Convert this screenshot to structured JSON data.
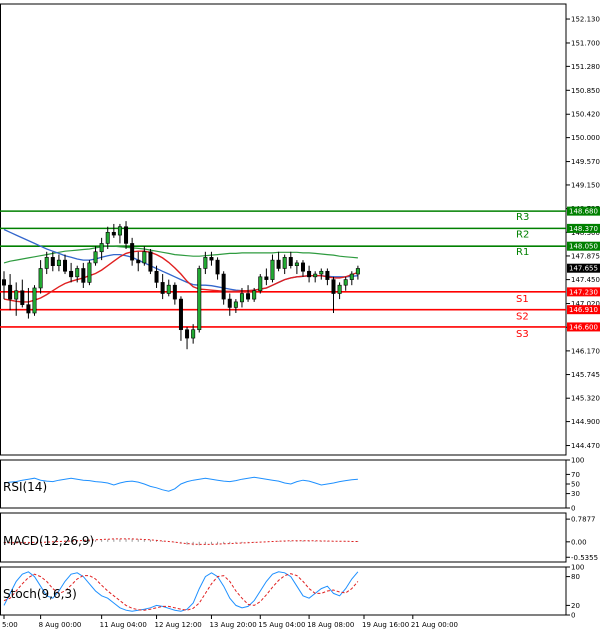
{
  "chart_data": {
    "type": "candlestick",
    "main": {
      "ylim": [
        144.3,
        152.4
      ],
      "y_ticks": [
        "152.130",
        "151.700",
        "151.280",
        "150.850",
        "150.420",
        "150.000",
        "149.570",
        "149.150",
        "148.725",
        "148.300",
        "147.875",
        "147.450",
        "147.020",
        "146.595",
        "146.170",
        "145.745",
        "145.320",
        "144.900",
        "144.470"
      ],
      "y_tick_values": [
        152.13,
        151.7,
        151.28,
        150.85,
        150.42,
        150.0,
        149.57,
        149.15,
        148.725,
        148.3,
        147.875,
        147.45,
        147.02,
        146.595,
        146.17,
        145.745,
        145.32,
        144.9,
        144.47
      ],
      "levels": [
        {
          "name": "R3",
          "value": 148.68,
          "label": "148.680",
          "color": "#008000"
        },
        {
          "name": "R2",
          "value": 148.37,
          "label": "148.370",
          "color": "#008000"
        },
        {
          "name": "R1",
          "value": 148.05,
          "label": "148.050",
          "color": "#008000"
        },
        {
          "name": "S1",
          "value": 147.23,
          "label": "147.230",
          "color": "#ff0000"
        },
        {
          "name": "S2",
          "value": 146.91,
          "label": "146.910",
          "color": "#ff0000"
        },
        {
          "name": "S3",
          "value": 146.6,
          "label": "146.600",
          "color": "#ff0000"
        }
      ],
      "current_price": {
        "value": 147.655,
        "label": "147.655"
      },
      "candles": [
        [
          147.45,
          147.6,
          147.1,
          147.35
        ],
        [
          147.35,
          147.55,
          146.9,
          147.1
        ],
        [
          147.1,
          147.4,
          146.8,
          147.25
        ],
        [
          147.25,
          147.45,
          146.95,
          147.0
        ],
        [
          147.0,
          147.3,
          146.75,
          146.85
        ],
        [
          146.85,
          147.35,
          146.8,
          147.3
        ],
        [
          147.3,
          147.8,
          147.2,
          147.65
        ],
        [
          147.65,
          147.95,
          147.55,
          147.85
        ],
        [
          147.85,
          147.95,
          147.6,
          147.7
        ],
        [
          147.7,
          147.9,
          147.6,
          147.8
        ],
        [
          147.8,
          147.9,
          147.55,
          147.6
        ],
        [
          147.6,
          147.75,
          147.4,
          147.5
        ],
        [
          147.5,
          147.7,
          147.4,
          147.65
        ],
        [
          147.65,
          147.75,
          147.3,
          147.4
        ],
        [
          147.4,
          147.8,
          147.35,
          147.75
        ],
        [
          147.75,
          148.05,
          147.7,
          147.95
        ],
        [
          147.95,
          148.2,
          147.8,
          148.1
        ],
        [
          148.1,
          148.4,
          148.0,
          148.3
        ],
        [
          148.3,
          148.45,
          148.2,
          148.25
        ],
        [
          148.25,
          148.45,
          148.1,
          148.4
        ],
        [
          148.4,
          148.5,
          148.0,
          148.1
        ],
        [
          148.1,
          148.2,
          147.7,
          147.8
        ],
        [
          147.8,
          147.95,
          147.6,
          147.75
        ],
        [
          147.75,
          148.05,
          147.7,
          147.95
        ],
        [
          147.95,
          148.0,
          147.55,
          147.6
        ],
        [
          147.6,
          147.7,
          147.3,
          147.4
        ],
        [
          147.4,
          147.55,
          147.1,
          147.2
        ],
        [
          147.2,
          147.45,
          147.15,
          147.35
        ],
        [
          147.35,
          147.4,
          147.0,
          147.1
        ],
        [
          147.1,
          147.15,
          146.35,
          146.55
        ],
        [
          146.55,
          146.6,
          146.2,
          146.4
        ],
        [
          146.4,
          146.65,
          146.3,
          146.55
        ],
        [
          146.55,
          147.7,
          146.5,
          147.65
        ],
        [
          147.65,
          147.95,
          147.55,
          147.85
        ],
        [
          147.85,
          147.95,
          147.7,
          147.8
        ],
        [
          147.8,
          147.85,
          147.45,
          147.55
        ],
        [
          147.55,
          147.6,
          147.0,
          147.1
        ],
        [
          147.1,
          147.2,
          146.8,
          146.95
        ],
        [
          146.95,
          147.1,
          146.85,
          147.05
        ],
        [
          147.05,
          147.3,
          146.95,
          147.2
        ],
        [
          147.2,
          147.35,
          147.05,
          147.1
        ],
        [
          147.1,
          147.3,
          147.05,
          147.25
        ],
        [
          147.25,
          147.55,
          147.2,
          147.5
        ],
        [
          147.5,
          147.65,
          147.35,
          147.45
        ],
        [
          147.45,
          147.9,
          147.4,
          147.8
        ],
        [
          147.8,
          147.95,
          147.6,
          147.65
        ],
        [
          147.65,
          147.9,
          147.55,
          147.85
        ],
        [
          147.85,
          147.95,
          147.65,
          147.7
        ],
        [
          147.7,
          147.8,
          147.55,
          147.75
        ],
        [
          147.75,
          147.8,
          147.5,
          147.6
        ],
        [
          147.6,
          147.7,
          147.4,
          147.5
        ],
        [
          147.5,
          147.6,
          147.4,
          147.55
        ],
        [
          147.55,
          147.65,
          147.45,
          147.6
        ],
        [
          147.6,
          147.65,
          147.35,
          147.45
        ],
        [
          147.45,
          147.5,
          146.85,
          147.2
        ],
        [
          147.2,
          147.4,
          147.1,
          147.35
        ],
        [
          147.35,
          147.5,
          147.25,
          147.45
        ],
        [
          147.45,
          147.6,
          147.35,
          147.55
        ],
        [
          147.55,
          147.7,
          147.45,
          147.65
        ]
      ],
      "ma_green": [
        147.75,
        147.78,
        147.8,
        147.82,
        147.84,
        147.86,
        147.88,
        147.9,
        147.92,
        147.94,
        147.96,
        147.97,
        147.98,
        147.99,
        148.0,
        148.02,
        148.04,
        148.05,
        148.05,
        148.04,
        148.03,
        148.02,
        148.01,
        148.0,
        147.98,
        147.96,
        147.94,
        147.92,
        147.9,
        147.89,
        147.88,
        147.87,
        147.87,
        147.88,
        147.89,
        147.9,
        147.91,
        147.92,
        147.92,
        147.93,
        147.93,
        147.93,
        147.93,
        147.93,
        147.93,
        147.94,
        147.94,
        147.94,
        147.94,
        147.93,
        147.93,
        147.92,
        147.91,
        147.9,
        147.89,
        147.87,
        147.86,
        147.85,
        147.84
      ],
      "ma_blue": [
        148.35,
        148.3,
        148.25,
        148.2,
        148.15,
        148.1,
        148.05,
        148.0,
        147.96,
        147.92,
        147.88,
        147.85,
        147.82,
        147.8,
        147.8,
        147.82,
        147.85,
        147.88,
        147.9,
        147.9,
        147.88,
        147.85,
        147.8,
        147.75,
        147.7,
        147.65,
        147.6,
        147.55,
        147.5,
        147.45,
        147.4,
        147.36,
        147.35,
        147.35,
        147.34,
        147.32,
        147.3,
        147.28,
        147.26,
        147.25,
        147.25,
        147.26,
        147.28,
        147.3,
        147.35,
        147.4,
        147.45,
        147.48,
        147.5,
        147.51,
        147.52,
        147.52,
        147.52,
        147.51,
        147.5,
        147.5,
        147.5,
        147.51,
        147.52
      ],
      "ma_red": [
        147.1,
        147.08,
        147.06,
        147.05,
        147.05,
        147.08,
        147.12,
        147.18,
        147.25,
        147.32,
        147.38,
        147.42,
        147.45,
        147.48,
        147.52,
        147.56,
        147.62,
        147.7,
        147.78,
        147.86,
        147.92,
        147.95,
        147.96,
        147.96,
        147.94,
        147.9,
        147.84,
        147.76,
        147.66,
        147.55,
        147.42,
        147.32,
        147.28,
        147.27,
        147.26,
        147.25,
        147.24,
        147.24,
        147.24,
        147.25,
        147.25,
        147.26,
        147.28,
        147.3,
        147.35,
        147.4,
        147.45,
        147.48,
        147.5,
        147.51,
        147.52,
        147.52,
        147.52,
        147.5,
        147.48,
        147.48,
        147.5,
        147.54,
        147.58
      ]
    },
    "rsi": {
      "label": "RSI(14)",
      "ylim": [
        0,
        100
      ],
      "y_ticks": [
        "100",
        "70",
        "50",
        "30",
        "0"
      ],
      "y_tick_values": [
        100,
        70,
        50,
        30,
        0
      ],
      "values": [
        52,
        54,
        55,
        58,
        60,
        62,
        58,
        56,
        55,
        58,
        60,
        62,
        60,
        58,
        57,
        55,
        54,
        52,
        48,
        52,
        55,
        56,
        54,
        50,
        45,
        42,
        38,
        35,
        40,
        50,
        55,
        58,
        60,
        62,
        60,
        58,
        56,
        55,
        57,
        60,
        62,
        64,
        62,
        60,
        58,
        56,
        52,
        50,
        55,
        58,
        56,
        52,
        48,
        50,
        52,
        55,
        57,
        59,
        60
      ]
    },
    "macd": {
      "label": "MACD(12,26,9)",
      "y_ticks": [
        "0.7877",
        "0.00",
        "-0.5355"
      ],
      "y_tick_values": [
        0.7877,
        0.0,
        -0.5355
      ],
      "ylim": [
        -0.7,
        1.0
      ],
      "hist": [
        -0.05,
        -0.05,
        -0.06,
        -0.05,
        -0.04,
        -0.03,
        -0.02,
        -0.01,
        0.0,
        0.01,
        0.02,
        0.03,
        0.03,
        0.04,
        0.05,
        0.06,
        0.07,
        0.08,
        0.09,
        0.1,
        0.1,
        0.1,
        0.09,
        0.08,
        0.07,
        0.05,
        0.03,
        0.01,
        -0.02,
        -0.06,
        -0.1,
        -0.12,
        -0.12,
        -0.1,
        -0.09,
        -0.08,
        -0.07,
        -0.06,
        -0.05,
        -0.04,
        -0.03,
        -0.02,
        -0.01,
        0.0,
        0.01,
        0.02,
        0.03,
        0.03,
        0.04,
        0.04,
        0.04,
        0.03,
        0.03,
        0.02,
        0.01,
        0.01,
        0.01,
        0.02,
        0.02
      ],
      "signal": [
        -0.02,
        -0.03,
        -0.03,
        -0.03,
        -0.03,
        -0.02,
        -0.02,
        -0.01,
        0.0,
        0.01,
        0.02,
        0.03,
        0.04,
        0.05,
        0.06,
        0.07,
        0.08,
        0.09,
        0.1,
        0.1,
        0.1,
        0.1,
        0.09,
        0.08,
        0.07,
        0.05,
        0.03,
        0.01,
        -0.01,
        -0.04,
        -0.06,
        -0.08,
        -0.09,
        -0.09,
        -0.09,
        -0.08,
        -0.07,
        -0.06,
        -0.05,
        -0.04,
        -0.03,
        -0.02,
        -0.01,
        0.0,
        0.01,
        0.02,
        0.03,
        0.04,
        0.04,
        0.04,
        0.04,
        0.04,
        0.03,
        0.03,
        0.02,
        0.02,
        0.02,
        0.01,
        0.01
      ]
    },
    "stoch": {
      "label": "Stoch(9,6,3)",
      "ylim": [
        0,
        100
      ],
      "y_ticks": [
        "100",
        "80",
        "20",
        "0"
      ],
      "y_tick_values": [
        100,
        80,
        20,
        0
      ],
      "main": [
        20,
        45,
        70,
        85,
        90,
        80,
        60,
        40,
        35,
        50,
        70,
        85,
        88,
        80,
        65,
        50,
        40,
        35,
        25,
        15,
        10,
        8,
        10,
        12,
        15,
        20,
        18,
        14,
        10,
        8,
        12,
        25,
        55,
        80,
        88,
        80,
        60,
        35,
        20,
        15,
        18,
        30,
        50,
        70,
        85,
        90,
        88,
        80,
        60,
        40,
        35,
        45,
        55,
        60,
        45,
        40,
        55,
        75,
        90
      ],
      "signal": [
        30,
        35,
        50,
        65,
        78,
        85,
        80,
        70,
        55,
        45,
        50,
        62,
        75,
        82,
        82,
        75,
        62,
        50,
        40,
        30,
        20,
        14,
        11,
        10,
        12,
        15,
        18,
        18,
        15,
        12,
        10,
        14,
        25,
        45,
        65,
        80,
        82,
        70,
        50,
        35,
        22,
        20,
        28,
        42,
        58,
        72,
        82,
        86,
        82,
        70,
        55,
        45,
        45,
        50,
        52,
        48,
        46,
        55,
        70
      ]
    },
    "x_ticks": [
      {
        "i": 0,
        "label": "5:00"
      },
      {
        "i": 6,
        "label": "8 Aug 00:00"
      },
      {
        "i": 16,
        "label": "11 Aug 04:00"
      },
      {
        "i": 25,
        "label": "12 Aug 12:00"
      },
      {
        "i": 34,
        "label": "13 Aug 20:00"
      },
      {
        "i": 42,
        "label": "15 Aug 04:00"
      },
      {
        "i": 50,
        "label": "18 Aug 08:00"
      },
      {
        "i": 59,
        "label": "19 Aug 16:00"
      },
      {
        "i": 67,
        "label": "21 Aug 00:00"
      }
    ],
    "x_count": 72
  }
}
